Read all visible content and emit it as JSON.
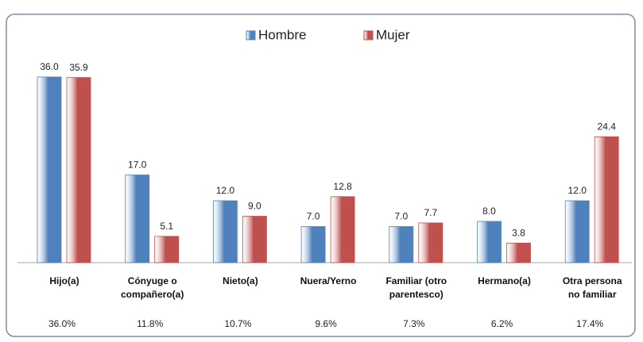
{
  "chart_data": {
    "type": "bar",
    "categories": [
      "Hijo(a)",
      "Cónyuge o compañero(a)",
      "Nieto(a)",
      "Nuera/Yerno",
      "Familiar (otro parentesco)",
      "Hermano(a)",
      "Otra persona no familiar"
    ],
    "series": [
      {
        "name": "Hombre",
        "color": "#4f81bd",
        "values": [
          36.0,
          17.0,
          12.0,
          7.0,
          7.0,
          8.0,
          12.0
        ],
        "value_labels": [
          "36.0",
          "17.0",
          "12.0",
          "7.0",
          "7.0",
          "8.0",
          "12.0"
        ]
      },
      {
        "name": "Mujer",
        "color": "#c0504d",
        "values": [
          35.9,
          5.1,
          9.0,
          12.8,
          7.7,
          3.8,
          24.4
        ],
        "value_labels": [
          "35.9",
          "5.1",
          "9.0",
          "12.8",
          "7.7",
          "3.8",
          "24.4"
        ]
      }
    ],
    "totals": [
      36.0,
      11.8,
      10.7,
      9.6,
      7.3,
      6.2,
      17.4
    ],
    "total_labels": [
      "36.0%",
      "11.8%",
      "10.7%",
      "9.6%",
      "7.3%",
      "6.2%",
      "17.4%"
    ],
    "ylim": [
      0,
      40
    ],
    "legend": "top"
  }
}
